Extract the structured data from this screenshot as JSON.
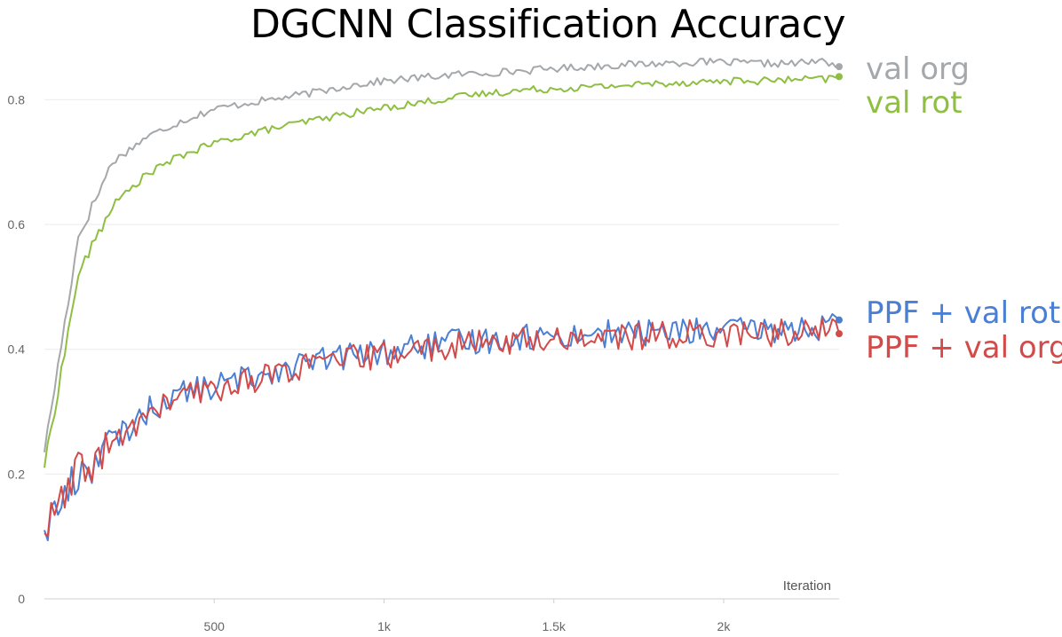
{
  "chart_data": {
    "type": "line",
    "title": "DGCNN Classification Accuracy",
    "xlabel": "Iteration",
    "ylabel": "",
    "xlim": [
      0,
      2340
    ],
    "ylim": [
      0,
      0.92
    ],
    "x_ticks": [
      500,
      1000,
      1500,
      2000
    ],
    "x_tick_labels": [
      "500",
      "1k",
      "1.5k",
      "2k"
    ],
    "y_ticks": [
      0,
      0.2,
      0.4,
      0.6,
      0.8
    ],
    "y_tick_labels": [
      "0",
      "0.2",
      "0.4",
      "0.6",
      "0.8"
    ],
    "grid": "horizontal",
    "legend_placement": "right",
    "series": [
      {
        "name": "val org",
        "color": "#a5a8ab",
        "x": [
          0,
          100,
          200,
          300,
          400,
          500,
          600,
          700,
          800,
          900,
          1000,
          1100,
          1200,
          1300,
          1400,
          1500,
          1600,
          1700,
          1800,
          1900,
          2000,
          2100,
          2200,
          2300,
          2340
        ],
        "values": [
          0.235,
          0.58,
          0.7,
          0.74,
          0.765,
          0.785,
          0.795,
          0.803,
          0.812,
          0.823,
          0.83,
          0.835,
          0.84,
          0.843,
          0.846,
          0.85,
          0.853,
          0.856,
          0.858,
          0.86,
          0.86,
          0.858,
          0.858,
          0.862,
          0.853
        ]
      },
      {
        "name": "val rot",
        "color": "#8ebf42",
        "x": [
          0,
          100,
          200,
          300,
          400,
          500,
          600,
          700,
          800,
          900,
          1000,
          1100,
          1200,
          1300,
          1400,
          1500,
          1600,
          1700,
          1800,
          1900,
          2000,
          2100,
          2200,
          2300,
          2340
        ],
        "values": [
          0.21,
          0.52,
          0.63,
          0.68,
          0.71,
          0.73,
          0.745,
          0.757,
          0.768,
          0.778,
          0.787,
          0.795,
          0.803,
          0.81,
          0.815,
          0.818,
          0.82,
          0.823,
          0.826,
          0.828,
          0.83,
          0.83,
          0.832,
          0.833,
          0.837
        ]
      },
      {
        "name": "PPF + val rot",
        "color": "#4a7fd4",
        "x": [
          0,
          100,
          200,
          300,
          400,
          500,
          600,
          700,
          800,
          900,
          1000,
          1100,
          1200,
          1300,
          1400,
          1500,
          1600,
          1700,
          1800,
          1900,
          2000,
          2100,
          2200,
          2300,
          2340
        ],
        "values": [
          0.11,
          0.2,
          0.25,
          0.3,
          0.33,
          0.34,
          0.355,
          0.37,
          0.38,
          0.39,
          0.395,
          0.405,
          0.41,
          0.415,
          0.42,
          0.42,
          0.425,
          0.425,
          0.428,
          0.43,
          0.43,
          0.43,
          0.432,
          0.435,
          0.447
        ]
      },
      {
        "name": "PPF + val org",
        "color": "#d34a4a",
        "x": [
          0,
          100,
          200,
          300,
          400,
          500,
          600,
          700,
          800,
          900,
          1000,
          1100,
          1200,
          1300,
          1400,
          1500,
          1600,
          1700,
          1800,
          1900,
          2000,
          2100,
          2200,
          2300,
          2340
        ],
        "values": [
          0.105,
          0.2,
          0.245,
          0.295,
          0.325,
          0.335,
          0.35,
          0.365,
          0.375,
          0.385,
          0.39,
          0.4,
          0.405,
          0.41,
          0.415,
          0.415,
          0.42,
          0.42,
          0.422,
          0.425,
          0.425,
          0.425,
          0.427,
          0.43,
          0.425
        ]
      }
    ]
  }
}
